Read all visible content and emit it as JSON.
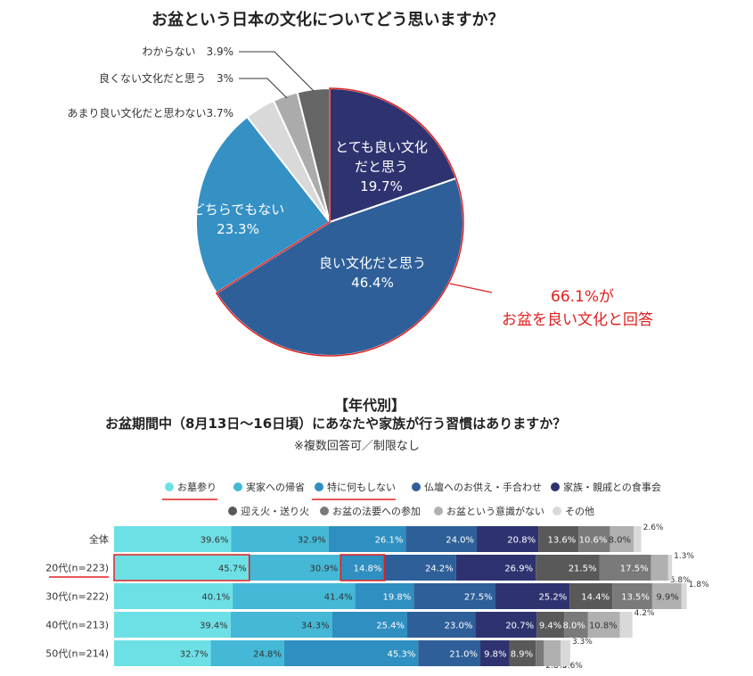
{
  "chart_data": [
    {
      "type": "pie",
      "title": "お盆という日本の文化についてどう思いますか？",
      "slices": [
        {
          "label": "とても良い文化だと思う",
          "value": 19.7,
          "color": "#2e3370"
        },
        {
          "label": "良い文化だと思う",
          "value": 46.4,
          "color": "#2e5f99"
        },
        {
          "label": "どちらでもない",
          "value": 23.3,
          "color": "#3590c4"
        },
        {
          "label": "あまり良い文化だと思わない",
          "value": 3.7,
          "color": "#d9d9d9"
        },
        {
          "label": "良くない文化だと思う",
          "value": 3.0,
          "color": "#ababab"
        },
        {
          "label": "わからない",
          "value": 3.9,
          "color": "#666666"
        }
      ],
      "annotation": [
        "66.1%が",
        "お盆を良い文化と回答"
      ]
    },
    {
      "type": "bar",
      "stacked": true,
      "orientation": "horizontal",
      "title": "【年代別】",
      "subtitle": "お盆期間中（8月13日〜16日頃）にあなたや家族が行う習慣はありますか？",
      "note": "※複数回答可／制限なし",
      "categories": [
        "全体",
        "20代(n=223)",
        "30代(n=222)",
        "40代(n=213)",
        "50代(n=214)"
      ],
      "series": [
        {
          "name": "お墓参り",
          "color": "#6de0e6",
          "values": [
            39.6,
            45.7,
            40.1,
            39.4,
            32.7
          ]
        },
        {
          "name": "実家への帰省",
          "color": "#44b8d6",
          "values": [
            32.9,
            30.9,
            41.4,
            34.3,
            24.8
          ]
        },
        {
          "name": "特に何もしない",
          "color": "#2f8fc0",
          "values": [
            26.1,
            14.8,
            19.8,
            25.4,
            45.3
          ]
        },
        {
          "name": "仏壇へのお供え・手合わせ",
          "color": "#2e5f99",
          "values": [
            24.0,
            24.2,
            27.5,
            23.0,
            21.0
          ]
        },
        {
          "name": "家族・親戚との食事会",
          "color": "#2e3370",
          "values": [
            20.8,
            26.9,
            25.2,
            20.7,
            9.8
          ]
        },
        {
          "name": "迎え火・送り火",
          "color": "#595959",
          "values": [
            13.6,
            21.5,
            14.4,
            9.4,
            8.9
          ]
        },
        {
          "name": "お盆の法要への参加",
          "color": "#7a7a7a",
          "values": [
            10.6,
            17.5,
            13.5,
            8.0,
            2.8
          ]
        },
        {
          "name": "お盆という意識がない",
          "color": "#b0b0b0",
          "values": [
            8.0,
            5.8,
            9.9,
            10.8,
            5.6
          ]
        },
        {
          "name": "その他",
          "color": "#d9d9d9",
          "values": [
            2.6,
            1.3,
            1.8,
            4.2,
            3.3
          ]
        }
      ],
      "legend": "top"
    }
  ]
}
